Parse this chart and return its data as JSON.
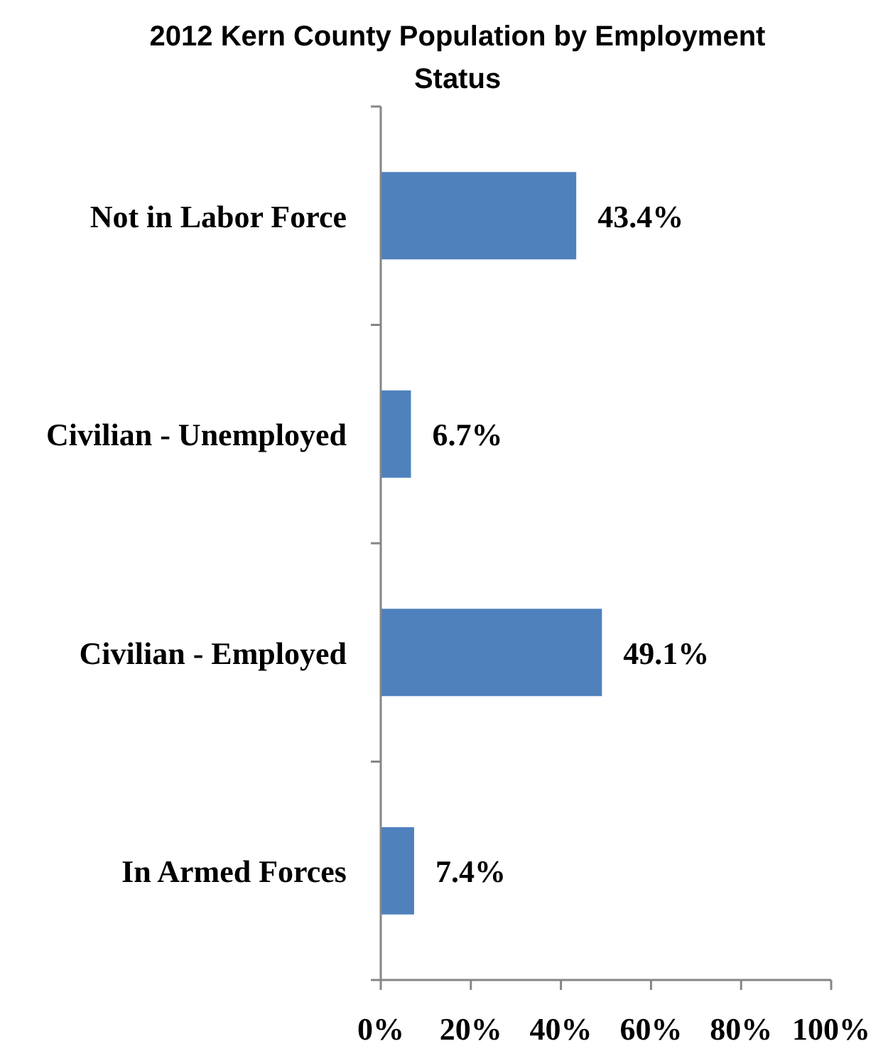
{
  "chart_data": {
    "type": "bar",
    "orientation": "horizontal",
    "title": "2012 Kern County Population by Employment Status",
    "categories": [
      "Not in Labor Force",
      "Civilian - Unemployed",
      "Civilian - Employed",
      "In Armed Forces"
    ],
    "values": [
      43.4,
      6.7,
      49.1,
      7.4
    ],
    "value_labels": [
      "43.4%",
      "6.7%",
      "49.1%",
      "7.4%"
    ],
    "color": "#4f81bd",
    "xlim": [
      0,
      100
    ],
    "xticks": [
      {
        "value": 0,
        "label": "0%"
      },
      {
        "value": 20,
        "label": "20%"
      },
      {
        "value": 40,
        "label": "40%"
      },
      {
        "value": 60,
        "label": "60%"
      },
      {
        "value": 80,
        "label": "80%"
      },
      {
        "value": 100,
        "label": "100%"
      }
    ],
    "grid": false
  }
}
